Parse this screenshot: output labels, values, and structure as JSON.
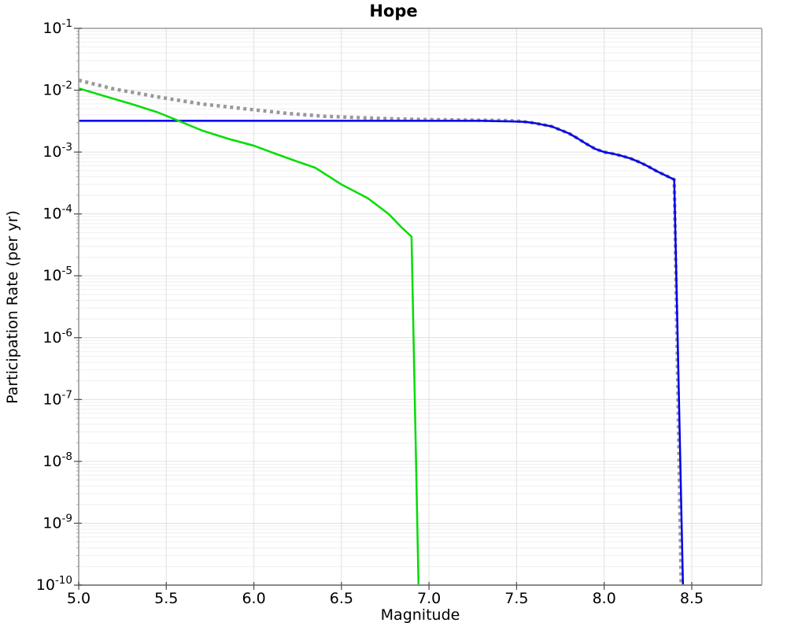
{
  "chart_data": {
    "type": "line",
    "title": "Hope",
    "xlabel": "Magnitude",
    "ylabel": "Participation Rate (per yr)",
    "x_axis": {
      "min": 5.0,
      "max": 8.9,
      "ticks": [
        5.0,
        5.5,
        6.0,
        6.5,
        7.0,
        7.5,
        8.0,
        8.5
      ],
      "tick_labels": [
        "5.0",
        "5.5",
        "6.0",
        "6.5",
        "7.0",
        "7.5",
        "8.0",
        "8.5"
      ]
    },
    "y_axis": {
      "scale": "log",
      "min": 1e-10,
      "max": 0.1,
      "tick_exponents": [
        -1,
        -2,
        -3,
        -4,
        -5,
        -6,
        -7,
        -8,
        -9,
        -10
      ],
      "tick_label_base": "10",
      "tick_label_exponents": [
        "-1",
        "-2",
        "-3",
        "-4",
        "-5",
        "-6",
        "-7",
        "-8",
        "-9",
        "-10"
      ]
    },
    "grid": {
      "major": true,
      "minor_log_decades": true
    },
    "legend": "none",
    "colors": {
      "gray_dotted": "#999999",
      "blue_solid": "#0000ee",
      "green_solid": "#00dd00",
      "grid_major": "#e0e0e0",
      "grid_minor": "#efefef",
      "border": "#999999",
      "border_bottom": "#8a8a8a",
      "tick": "#555555",
      "background": "#ffffff",
      "text": "#000000"
    },
    "series": [
      {
        "name": "gray-dotted-curve",
        "style": "dotted",
        "color_key": "gray_dotted",
        "width": 4.5,
        "points": [
          [
            5.0,
            0.0145
          ],
          [
            5.2,
            0.0105
          ],
          [
            5.45,
            0.0078
          ],
          [
            5.7,
            0.006
          ],
          [
            5.95,
            0.005
          ],
          [
            6.2,
            0.0042
          ],
          [
            6.4,
            0.0038
          ],
          [
            6.6,
            0.0036
          ],
          [
            6.8,
            0.00345
          ],
          [
            7.0,
            0.00335
          ],
          [
            7.2,
            0.0033
          ],
          [
            7.4,
            0.00325
          ],
          [
            7.5,
            0.0032
          ],
          [
            7.6,
            0.00295
          ],
          [
            7.7,
            0.0026
          ],
          [
            7.8,
            0.002
          ],
          [
            7.85,
            0.00165
          ],
          [
            7.9,
            0.00135
          ],
          [
            7.95,
            0.00112
          ],
          [
            8.0,
            0.001
          ],
          [
            8.05,
            0.00094
          ],
          [
            8.1,
            0.00087
          ],
          [
            8.15,
            0.00079
          ],
          [
            8.2,
            0.00069
          ],
          [
            8.25,
            0.00059
          ],
          [
            8.3,
            0.00049
          ],
          [
            8.35,
            0.00042
          ],
          [
            8.4,
            0.00036
          ],
          [
            8.44,
            1e-10
          ]
        ]
      },
      {
        "name": "blue-solid-curve",
        "style": "solid",
        "color_key": "blue_solid",
        "width": 2.5,
        "points": [
          [
            5.0,
            0.0032
          ],
          [
            6.0,
            0.0032
          ],
          [
            7.0,
            0.0032
          ],
          [
            7.3,
            0.0032
          ],
          [
            7.45,
            0.00315
          ],
          [
            7.55,
            0.00308
          ],
          [
            7.6,
            0.00295
          ],
          [
            7.7,
            0.0026
          ],
          [
            7.8,
            0.002
          ],
          [
            7.85,
            0.00165
          ],
          [
            7.9,
            0.00135
          ],
          [
            7.95,
            0.00112
          ],
          [
            8.0,
            0.001
          ],
          [
            8.05,
            0.00094
          ],
          [
            8.1,
            0.00087
          ],
          [
            8.15,
            0.00079
          ],
          [
            8.2,
            0.00069
          ],
          [
            8.25,
            0.00059
          ],
          [
            8.3,
            0.00049
          ],
          [
            8.35,
            0.00042
          ],
          [
            8.4,
            0.00036
          ],
          [
            8.45,
            1e-10
          ]
        ]
      },
      {
        "name": "green-solid-curve",
        "style": "solid",
        "color_key": "green_solid",
        "width": 2.5,
        "points": [
          [
            5.0,
            0.0107
          ],
          [
            5.15,
            0.008
          ],
          [
            5.3,
            0.006
          ],
          [
            5.45,
            0.0044
          ],
          [
            5.57,
            0.0032
          ],
          [
            5.7,
            0.00225
          ],
          [
            5.85,
            0.00165
          ],
          [
            6.0,
            0.00127
          ],
          [
            6.12,
            0.00095
          ],
          [
            6.25,
            0.0007
          ],
          [
            6.35,
            0.00056
          ],
          [
            6.5,
            0.0003
          ],
          [
            6.65,
            0.00018
          ],
          [
            6.77,
            0.0001
          ],
          [
            6.84,
            6.2e-05
          ],
          [
            6.9,
            4.3e-05
          ],
          [
            6.94,
            1e-10
          ]
        ]
      }
    ]
  }
}
